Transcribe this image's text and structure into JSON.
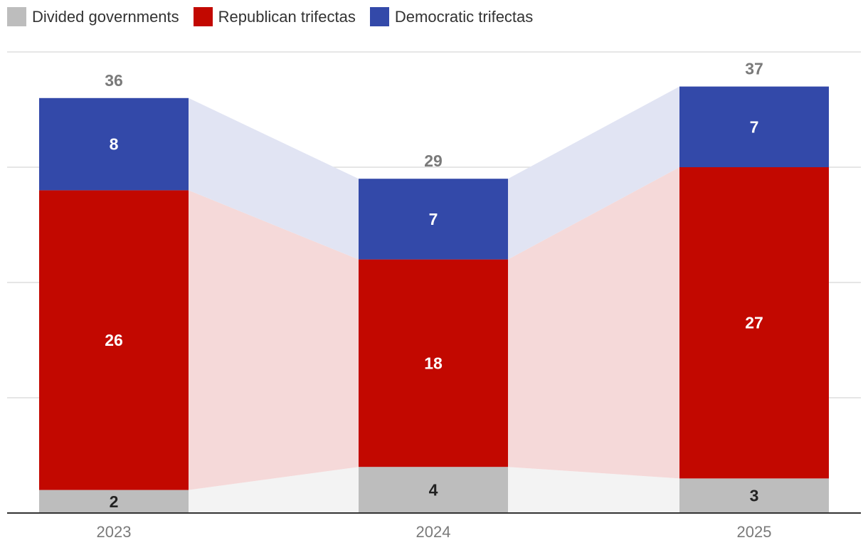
{
  "chart_data": {
    "type": "bar",
    "stacked": true,
    "categories": [
      "2023",
      "2024",
      "2025"
    ],
    "series": [
      {
        "name": "Divided governments",
        "key": "divided",
        "values": [
          2,
          4,
          3
        ],
        "color": "#bdbdbd",
        "band_color": "#f3f3f3",
        "label_color": "#222222"
      },
      {
        "name": "Republican trifectas",
        "key": "republican",
        "values": [
          26,
          18,
          27
        ],
        "color": "#c20800",
        "band_color": "#f5d9d9",
        "label_color": "#ffffff"
      },
      {
        "name": "Democratic trifectas",
        "key": "democratic",
        "values": [
          8,
          7,
          7
        ],
        "color": "#3349a9",
        "band_color": "#e1e4f3",
        "label_color": "#ffffff"
      }
    ],
    "totals": [
      36,
      29,
      37
    ],
    "ylim": [
      0,
      40
    ],
    "grid": true,
    "legend": "top-left",
    "title": "",
    "xlabel": "",
    "ylabel": ""
  },
  "colors": {
    "grid": "#dddddd",
    "axis": "#333333",
    "total_label": "#7a7a7a",
    "tick_label": "#7a7a7a"
  }
}
